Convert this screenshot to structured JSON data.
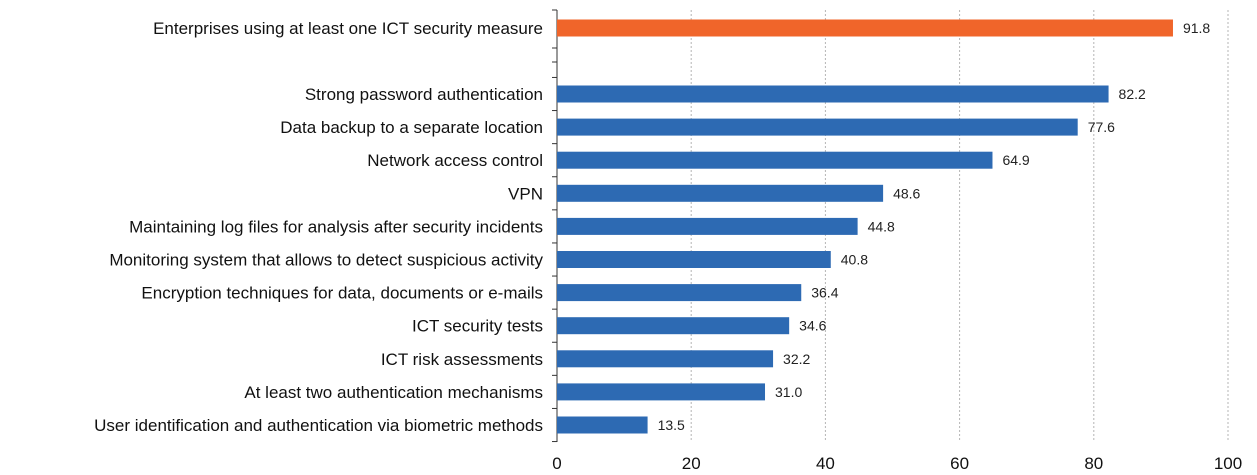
{
  "chart_data": {
    "type": "bar",
    "orientation": "horizontal",
    "highlight": {
      "category": "Enterprises using at least one ICT security measure",
      "value": 91.8,
      "color": "#f0652a"
    },
    "categories": [
      "Strong password authentication",
      "Data backup to a separate location",
      "Network access control",
      "VPN",
      "Maintaining log files for analysis after security incidents",
      "Monitoring system that allows to detect suspicious activity",
      "Encryption techniques for data, documents or e-mails",
      "ICT security tests",
      "ICT risk assessments",
      "At least two authentication mechanisms",
      "User identification and authentication via biometric methods"
    ],
    "values": [
      82.2,
      77.6,
      64.9,
      48.6,
      44.8,
      40.8,
      36.4,
      34.6,
      32.2,
      31.0,
      13.5
    ],
    "value_labels": [
      "82.2",
      "77.6",
      "64.9",
      "48.6",
      "44.8",
      "40.8",
      "36.4",
      "34.6",
      "32.2",
      "31.0",
      "13.5"
    ],
    "highlight_label": "91.8",
    "bar_color": "#2d6ab3",
    "xlim": [
      0,
      100
    ],
    "xticks": [
      0,
      20,
      40,
      60,
      80,
      100
    ],
    "xtick_labels": [
      "0",
      "20",
      "40",
      "60",
      "80",
      "100"
    ],
    "grid": "vertical dotted",
    "title": "",
    "xlabel": "",
    "ylabel": ""
  }
}
